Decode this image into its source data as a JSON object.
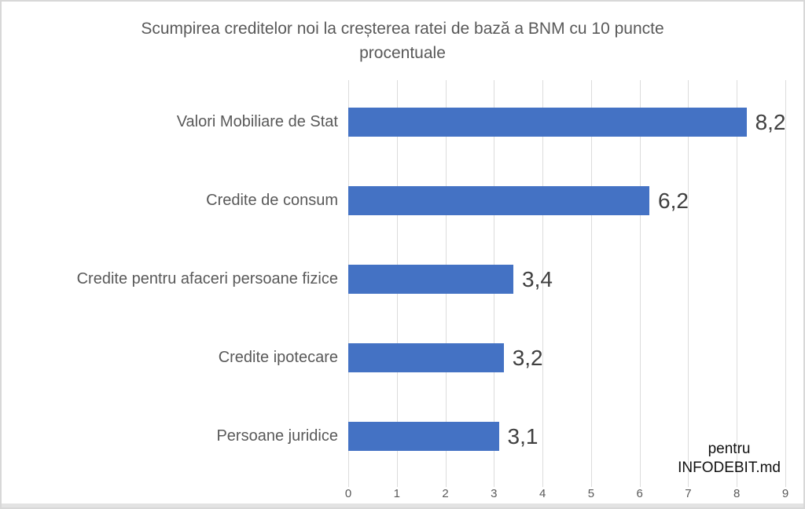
{
  "chart_data": {
    "type": "bar",
    "orientation": "horizontal",
    "title": "Scumpirea creditelor noi la creșterea ratei de bază a BNM cu 10 puncte procentuale",
    "title_lines": [
      "Scumpirea creditelor noi la creșterea ratei de bază a BNM cu 10 puncte",
      "procentuale"
    ],
    "categories": [
      "Valori Mobiliare de Stat",
      "Credite de consum",
      "Credite pentru afaceri persoane fizice",
      "Credite ipotecare",
      "Persoane juridice"
    ],
    "values": [
      8.2,
      6.2,
      3.4,
      3.2,
      3.1
    ],
    "value_labels": [
      "8,2",
      "6,2",
      "3,4",
      "3,2",
      "3,1"
    ],
    "xlabel": "",
    "ylabel": "",
    "xlim": [
      0,
      9
    ],
    "x_ticks": [
      "0",
      "1",
      "2",
      "3",
      "4",
      "5",
      "6",
      "7",
      "8",
      "9"
    ],
    "grid": "vertical",
    "legend": "none",
    "bar_color": "#4472C4",
    "category_label_color": "#595959",
    "value_label_color": "#404040",
    "tick_label_color": "#595959",
    "gridline_color": "#DCDCDC"
  },
  "watermark": {
    "line1": "pentru",
    "line2": "INFODEBIT.md"
  }
}
